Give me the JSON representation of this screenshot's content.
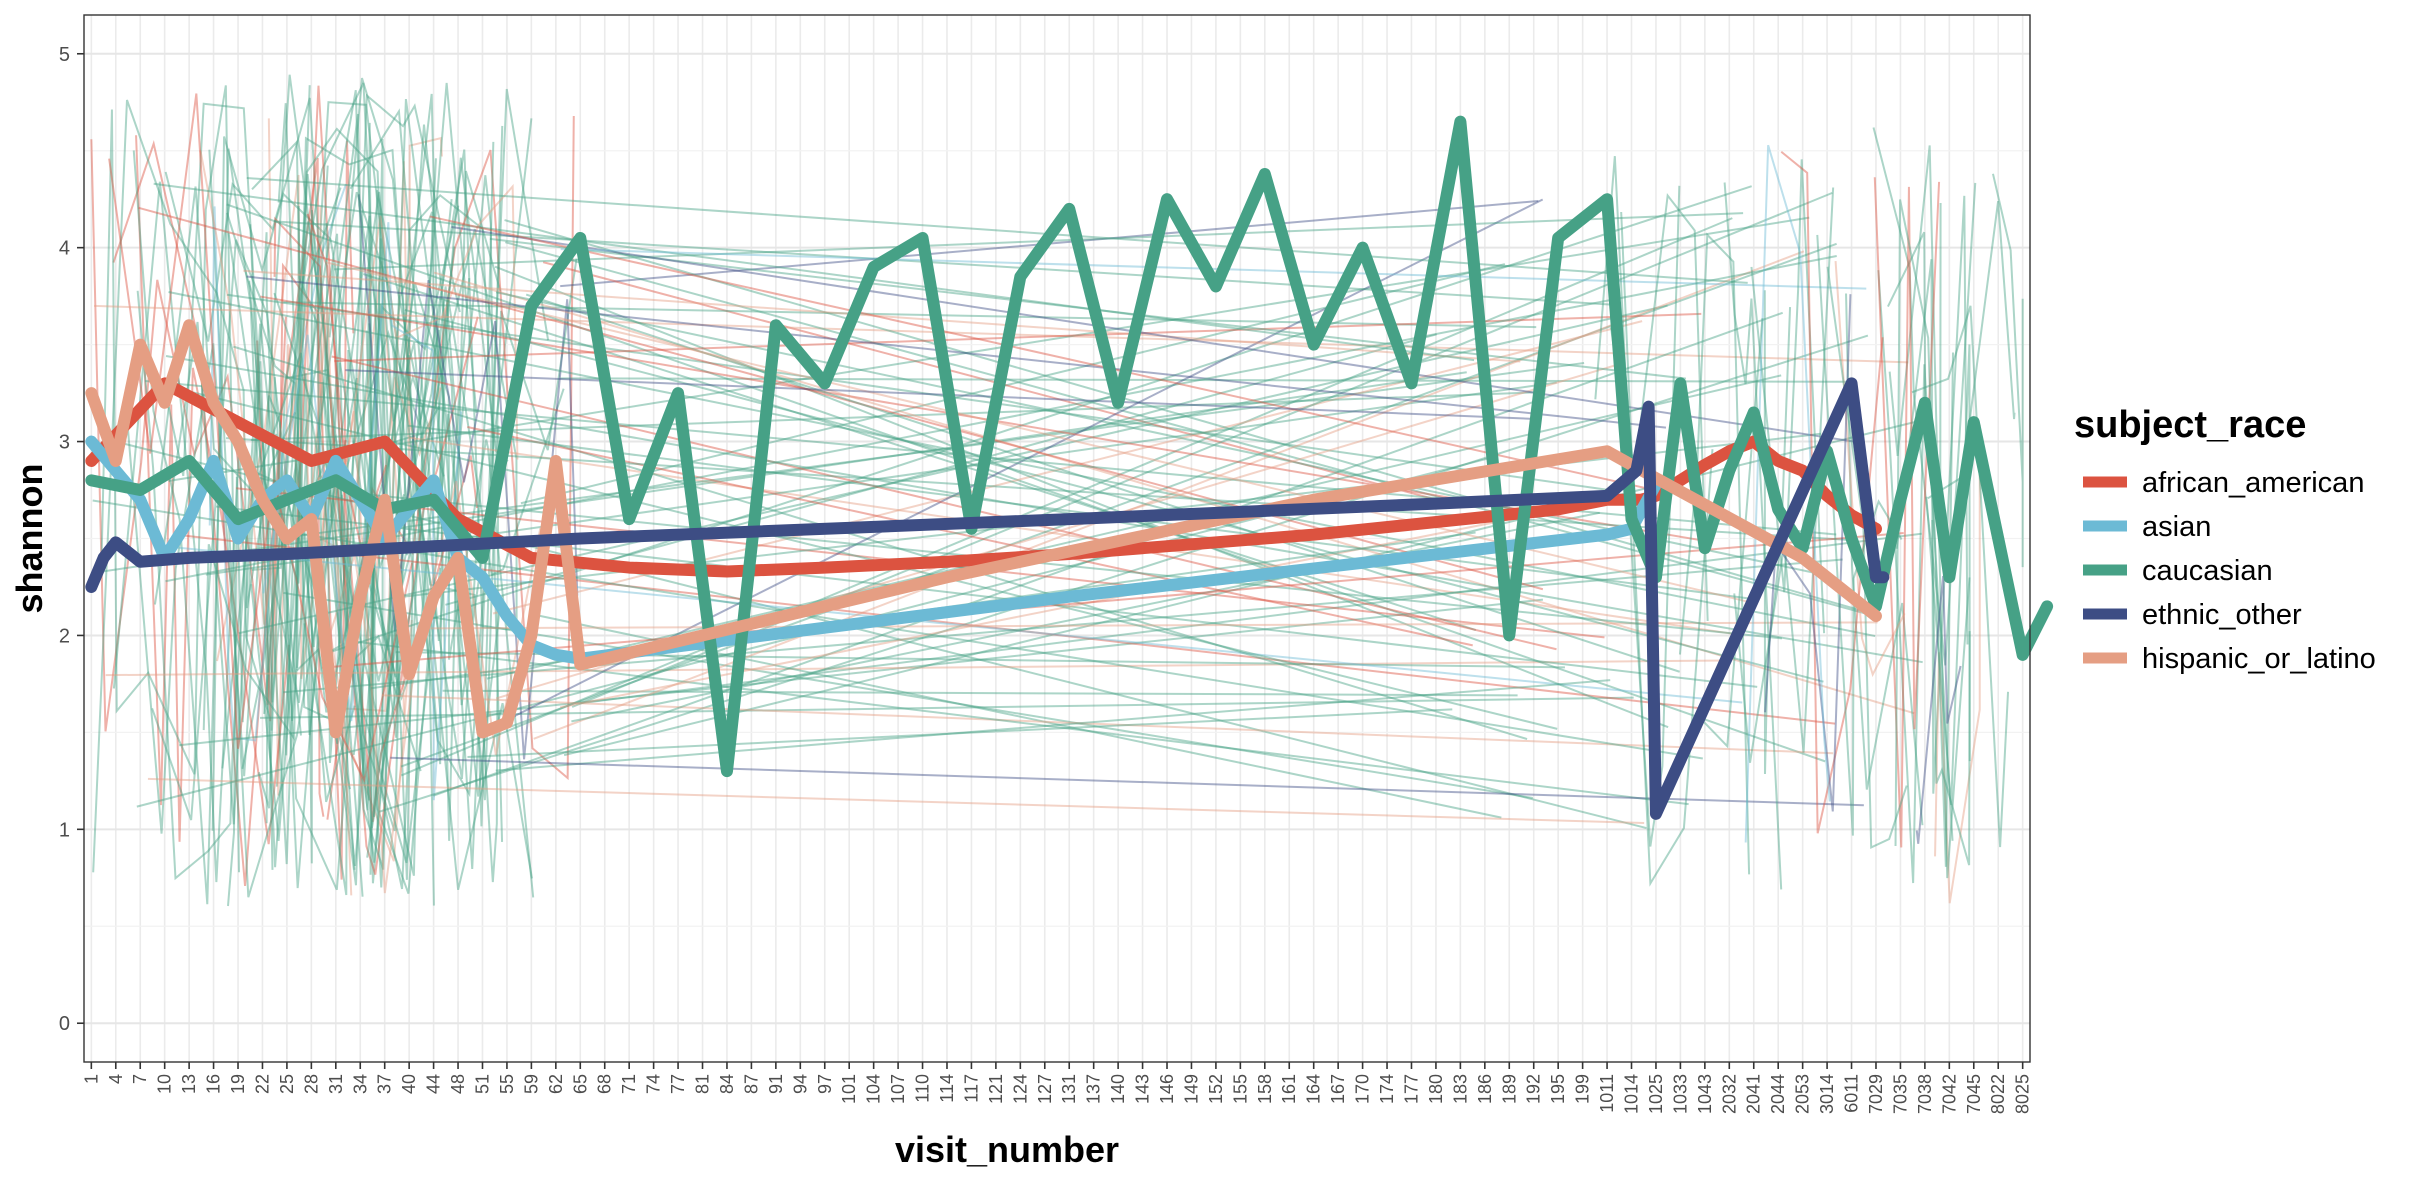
{
  "chart_data": {
    "type": "line",
    "xlabel": "visit_number",
    "ylabel": "shannon",
    "ylim": [
      0,
      5
    ],
    "y_ticks": [
      0,
      1,
      2,
      3,
      4,
      5
    ],
    "grid": true,
    "legend_position": "right",
    "legend_title": "subject_race",
    "x_tick_labels": [
      "1",
      "4",
      "7",
      "10",
      "13",
      "16",
      "19",
      "22",
      "25",
      "28",
      "31",
      "34",
      "37",
      "40",
      "44",
      "48",
      "51",
      "55",
      "59",
      "62",
      "65",
      "68",
      "71",
      "74",
      "77",
      "81",
      "84",
      "87",
      "91",
      "94",
      "97",
      "101",
      "104",
      "107",
      "110",
      "114",
      "117",
      "121",
      "124",
      "127",
      "131",
      "137",
      "140",
      "143",
      "146",
      "149",
      "152",
      "155",
      "158",
      "161",
      "164",
      "167",
      "170",
      "174",
      "177",
      "180",
      "183",
      "186",
      "189",
      "192",
      "195",
      "199",
      "1011",
      "1014",
      "1025",
      "1033",
      "1043",
      "2032",
      "2041",
      "2044",
      "2053",
      "3014",
      "6011",
      "7029",
      "7035",
      "7038",
      "7042",
      "7045",
      "8022",
      "8025"
    ],
    "series": [
      {
        "name": "african_american",
        "color": "#DC5340",
        "x": [
          0,
          3,
          6,
          9,
          12,
          15,
          18,
          22,
          26,
          30,
          35,
          40,
          50,
          60,
          62,
          63.4,
          64,
          65,
          66,
          67,
          68,
          69,
          70,
          71,
          72,
          73
        ],
        "y": [
          2.9,
          3.3,
          3.1,
          2.9,
          3.0,
          2.6,
          2.4,
          2.35,
          2.33,
          2.35,
          2.38,
          2.42,
          2.52,
          2.65,
          2.7,
          2.7,
          2.72,
          2.8,
          2.88,
          2.95,
          3.0,
          2.9,
          2.85,
          2.72,
          2.62,
          2.55
        ]
      },
      {
        "name": "asian",
        "color": "#6CBAD5",
        "x": [
          0,
          2,
          3,
          4,
          5,
          6,
          7,
          8,
          9,
          10,
          11,
          12,
          13,
          14,
          15,
          16,
          17,
          18,
          19,
          20,
          40,
          62,
          63,
          64
        ],
        "y": [
          3.0,
          2.7,
          2.4,
          2.6,
          2.9,
          2.5,
          2.7,
          2.8,
          2.6,
          2.9,
          2.7,
          2.5,
          2.65,
          2.8,
          2.4,
          2.3,
          2.1,
          1.95,
          1.9,
          1.88,
          2.2,
          2.52,
          2.55,
          2.78
        ]
      },
      {
        "name": "caucasian",
        "color": "#46A186",
        "x": [
          0,
          2,
          4,
          6,
          8,
          10,
          12,
          14,
          16,
          18,
          20,
          22,
          24,
          26,
          28,
          30,
          32,
          34,
          36,
          38,
          40,
          42,
          44,
          46,
          48,
          50,
          52,
          54,
          56,
          58,
          60,
          62,
          63,
          64,
          65,
          66,
          67,
          68,
          69,
          70,
          71,
          72,
          73,
          74,
          75,
          76,
          77,
          78,
          79,
          80
        ],
        "y": [
          2.8,
          2.75,
          2.9,
          2.6,
          2.7,
          2.8,
          2.65,
          2.7,
          2.4,
          3.7,
          4.05,
          2.6,
          3.25,
          1.3,
          3.6,
          3.3,
          3.9,
          4.05,
          2.55,
          3.85,
          4.2,
          3.2,
          4.25,
          3.8,
          4.38,
          3.5,
          4.0,
          3.3,
          4.65,
          2.0,
          4.05,
          4.25,
          2.6,
          2.3,
          3.3,
          2.45,
          2.85,
          3.15,
          2.65,
          2.45,
          2.95,
          2.5,
          2.15,
          2.7,
          3.2,
          2.3,
          3.1,
          2.5,
          1.9,
          2.15
        ]
      },
      {
        "name": "ethnic_other",
        "color": "#3D4D84",
        "x": [
          0,
          0.5,
          1,
          2,
          4,
          8,
          20,
          40,
          55,
          62,
          63.2,
          63.7,
          64,
          72,
          73,
          73.3
        ],
        "y": [
          2.25,
          2.4,
          2.48,
          2.38,
          2.4,
          2.42,
          2.5,
          2.6,
          2.68,
          2.72,
          2.85,
          3.18,
          1.08,
          3.3,
          2.3,
          2.3
        ],
        "drawn_x": [
          0,
          0.5,
          1,
          2,
          4,
          8,
          20,
          40,
          55,
          62,
          63.2,
          63.7,
          64,
          72,
          73,
          73.3
        ]
      },
      {
        "name": "hispanic_or_latino",
        "color": "#E59E83",
        "x": [
          0,
          1,
          2,
          3,
          4,
          5,
          6,
          7,
          8,
          9,
          10,
          11,
          12,
          13,
          14,
          15,
          16,
          17,
          18,
          19,
          20,
          35,
          50,
          62,
          63,
          70,
          73
        ],
        "y": [
          3.25,
          2.9,
          3.5,
          3.2,
          3.6,
          3.2,
          3.0,
          2.7,
          2.5,
          2.6,
          1.5,
          2.2,
          2.7,
          1.8,
          2.2,
          2.4,
          1.5,
          1.55,
          2.0,
          2.9,
          1.85,
          2.3,
          2.7,
          2.95,
          2.88,
          2.4,
          2.1
        ]
      }
    ]
  }
}
